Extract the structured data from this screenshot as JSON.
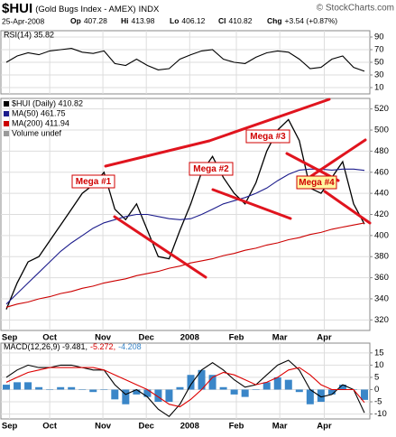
{
  "header": {
    "symbol": "$HUI",
    "name": "(Gold Bugs Index - AMEX)",
    "exchange": "INDX",
    "watermark": "© StockCharts.com",
    "date": "25-Apr-2008",
    "quote": [
      {
        "label": "Op",
        "value": "407.28"
      },
      {
        "label": "Hi",
        "value": "413.98"
      },
      {
        "label": "Lo",
        "value": "406.12"
      },
      {
        "label": "Cl",
        "value": "410.82"
      },
      {
        "label": "Chg",
        "value": "+3.54 (+0.87%)"
      }
    ]
  },
  "chart_data": [
    {
      "type": "line",
      "title": "RSI(14) 35.82",
      "xlim": [
        -0.5,
        33.5
      ],
      "ylim": [
        0,
        100
      ],
      "yticks": [
        10,
        30,
        50,
        70,
        90
      ],
      "grid": true,
      "series": [
        {
          "name": "RSI(14) 35.82",
          "color": "#000000",
          "values": [
            50,
            60,
            65,
            62,
            68,
            70,
            72,
            66,
            64,
            68,
            48,
            45,
            55,
            45,
            38,
            40,
            55,
            62,
            68,
            70,
            55,
            50,
            48,
            58,
            65,
            68,
            66,
            55,
            40,
            42,
            55,
            60,
            42,
            35.82
          ]
        }
      ]
    },
    {
      "type": "line",
      "xlim": [
        -0.5,
        33.5
      ],
      "ylim": [
        310,
        530
      ],
      "yticks": [
        320,
        340,
        360,
        380,
        400,
        420,
        440,
        460,
        480,
        500,
        520
      ],
      "grid": true,
      "xticks": [
        {
          "value": 0.3,
          "label": "Sep"
        },
        {
          "value": 4,
          "label": "Oct"
        },
        {
          "value": 8.9,
          "label": "Nov"
        },
        {
          "value": 12.9,
          "label": "Dec"
        },
        {
          "value": 16.9,
          "label": "2008"
        },
        {
          "value": 21.2,
          "label": "Feb"
        },
        {
          "value": 25.2,
          "label": "Mar"
        },
        {
          "value": 29.3,
          "label": "Apr"
        }
      ],
      "series": [
        {
          "name": "$HUI (Daily) 410.82",
          "color": "#000000",
          "values": [
            330,
            355,
            375,
            380,
            395,
            410,
            425,
            440,
            448,
            460,
            425,
            415,
            430,
            405,
            380,
            378,
            405,
            430,
            460,
            475,
            455,
            440,
            430,
            450,
            480,
            500,
            510,
            490,
            445,
            440,
            455,
            470,
            430,
            410.82
          ]
        },
        {
          "name": "MA(50) 461.75",
          "color": "#1c1c8c",
          "values": [
            335,
            345,
            355,
            365,
            375,
            385,
            393,
            400,
            407,
            412,
            415,
            418,
            420,
            420,
            418,
            416,
            415,
            416,
            420,
            425,
            430,
            433,
            436,
            440,
            445,
            452,
            458,
            462,
            463,
            463,
            462,
            463,
            463,
            461.75
          ]
        },
        {
          "name": "MA(200) 411.94",
          "color": "#cc0000",
          "values": [
            332,
            335,
            337,
            340,
            342,
            345,
            347,
            350,
            352,
            355,
            357,
            359,
            362,
            364,
            366,
            369,
            371,
            374,
            376,
            378,
            381,
            383,
            386,
            388,
            391,
            393,
            396,
            398,
            401,
            403,
            406,
            408,
            410,
            411.94
          ]
        }
      ],
      "volume_label": "Volume undef",
      "annotations": [
        "Mega #1",
        "Mega #2",
        "Mega #3",
        "Mega #4"
      ]
    },
    {
      "type": "line",
      "xlim": [
        -0.5,
        33.5
      ],
      "ylim": [
        -12,
        19
      ],
      "yticks": [
        -10,
        -5,
        0,
        5,
        10,
        15
      ],
      "grid": true,
      "xticks": [
        {
          "value": 0.3,
          "label": "Sep"
        },
        {
          "value": 4,
          "label": "Oct"
        },
        {
          "value": 8.9,
          "label": "Nov"
        },
        {
          "value": 12.9,
          "label": "Dec"
        },
        {
          "value": 16.9,
          "label": "2008"
        },
        {
          "value": 21.2,
          "label": "Feb"
        },
        {
          "value": 25.2,
          "label": "Mar"
        },
        {
          "value": 29.3,
          "label": "Apr"
        }
      ],
      "series": [
        {
          "name": "-4.208",
          "color": "#3a86c8",
          "type": "bar",
          "values": [
            2,
            3,
            3,
            1,
            0,
            1,
            1,
            0,
            -1,
            0,
            -4,
            -6,
            -2,
            -3,
            -5,
            -5,
            1,
            6,
            8,
            6,
            1,
            -2,
            -3,
            0,
            3,
            5,
            4,
            -1,
            -6,
            -5,
            -2,
            2,
            0,
            -4.208
          ]
        },
        {
          "name": "MACD(12,26,9) -9.481,",
          "color": "#000000",
          "values": [
            5,
            8,
            10,
            9,
            9,
            10,
            10,
            9,
            8,
            8,
            2,
            -2,
            0,
            -3,
            -8,
            -11,
            -6,
            2,
            8,
            11,
            8,
            4,
            1,
            2,
            6,
            10,
            12,
            8,
            0,
            -3,
            -2,
            2,
            0,
            -9.481
          ]
        },
        {
          "name": "-5.272,",
          "color": "#dd0000",
          "values": [
            3,
            5,
            7,
            8,
            9,
            9,
            9,
            9,
            9,
            8,
            6,
            4,
            2,
            0,
            -3,
            -6,
            -7,
            -4,
            0,
            5,
            7,
            6,
            4,
            2,
            3,
            5,
            8,
            9,
            6,
            2,
            0,
            0,
            0,
            -5.272
          ]
        }
      ]
    }
  ]
}
